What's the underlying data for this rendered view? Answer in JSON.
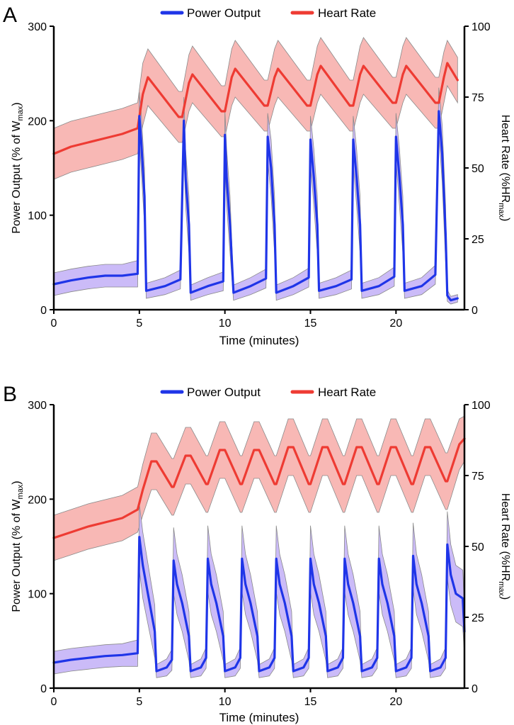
{
  "colors": {
    "power": "#1f35e8",
    "power_band": "#c5b4f7",
    "heart": "#ee3b33",
    "heart_band": "#f7b0ad",
    "band_edge": "#8a8a8a",
    "axis": "#000000"
  },
  "chart_data": [
    {
      "panel_label": "A",
      "type": "line",
      "title": "",
      "xlabel": "Time (minutes)",
      "xlim": [
        0,
        24
      ],
      "xticks": [
        0,
        5,
        10,
        15,
        20
      ],
      "ylabel_left": "Power Output  (% of W",
      "ylabel_left_sub": "max",
      "ylabel_left_end": ")",
      "ylim_left": [
        0,
        300
      ],
      "yticks_left": [
        0,
        100,
        200,
        300
      ],
      "ylabel_right": "Heart Rate (%HR",
      "ylabel_right_sub": "max",
      "ylabel_right_end": ")",
      "ylim_right": [
        0,
        100
      ],
      "yticks_right": [
        0,
        25,
        50,
        75,
        100
      ],
      "legend": "top-center",
      "series": [
        {
          "name": "Power Output",
          "axis": "left",
          "color": "#1f35e8",
          "x": [
            0,
            1,
            2,
            3,
            4,
            4.9,
            5.0,
            5.1,
            5.3,
            5.4,
            6.5,
            7.4,
            7.6,
            7.7,
            7.9,
            8.0,
            9.0,
            9.9,
            10.0,
            10.1,
            10.3,
            10.5,
            11.5,
            12.4,
            12.5,
            12.7,
            12.9,
            13.0,
            14.0,
            14.9,
            15.0,
            15.2,
            15.4,
            15.5,
            16.5,
            17.4,
            17.5,
            17.7,
            17.9,
            18.0,
            19.0,
            19.9,
            20.0,
            20.2,
            20.4,
            20.5,
            21.5,
            22.3,
            22.5,
            22.7,
            22.9,
            23.0,
            23.2,
            23.6
          ],
          "values": [
            27,
            31,
            34,
            36,
            36,
            38,
            205,
            180,
            120,
            20,
            25,
            32,
            200,
            140,
            90,
            18,
            25,
            30,
            185,
            140,
            90,
            18,
            25,
            33,
            183,
            150,
            90,
            18,
            25,
            34,
            180,
            140,
            90,
            20,
            25,
            32,
            180,
            140,
            90,
            20,
            25,
            35,
            183,
            140,
            90,
            20,
            25,
            37,
            210,
            165,
            80,
            15,
            10,
            12
          ],
          "band": [
            12,
            12,
            12,
            12,
            12,
            14,
            25,
            30,
            30,
            8,
            9,
            10,
            25,
            30,
            30,
            8,
            9,
            10,
            25,
            30,
            30,
            8,
            9,
            10,
            25,
            30,
            30,
            8,
            9,
            10,
            25,
            30,
            30,
            8,
            9,
            10,
            25,
            30,
            30,
            8,
            9,
            10,
            25,
            30,
            30,
            8,
            9,
            10,
            25,
            30,
            30,
            6,
            4,
            4
          ]
        },
        {
          "name": "Heart Rate",
          "axis": "right",
          "color": "#ee3b33",
          "x": [
            0,
            1,
            2,
            3,
            4,
            4.9,
            5.2,
            5.5,
            7.3,
            7.5,
            7.9,
            8.1,
            9.8,
            10.0,
            10.4,
            10.6,
            12.3,
            12.5,
            12.9,
            13.1,
            14.8,
            15.0,
            15.4,
            15.6,
            17.3,
            17.5,
            17.9,
            18.1,
            19.8,
            20.0,
            20.4,
            20.6,
            22.3,
            22.5,
            22.8,
            23.0,
            23.6
          ],
          "values": [
            55,
            57.5,
            59,
            60.5,
            62,
            64,
            76,
            82,
            68,
            68,
            80,
            83,
            70,
            70,
            82,
            85,
            72,
            72,
            82,
            85,
            72,
            72,
            83,
            86,
            72,
            72,
            83,
            86,
            73,
            73,
            83,
            86,
            73,
            73,
            82,
            87,
            81
          ],
          "band": [
            9,
            9,
            9,
            9,
            9,
            9,
            11,
            10,
            9,
            9,
            10,
            10,
            9,
            9,
            10,
            10,
            9,
            9,
            10,
            10,
            9,
            9,
            10,
            10,
            9,
            9,
            10,
            10,
            9,
            9,
            10,
            10,
            9,
            9,
            9,
            8,
            8
          ]
        }
      ]
    },
    {
      "panel_label": "B",
      "type": "line",
      "title": "",
      "xlabel": "Time (minutes)",
      "xlim": [
        0,
        24
      ],
      "xticks": [
        0,
        5,
        10,
        15,
        20
      ],
      "ylabel_left": "Power Output  (% of W",
      "ylabel_left_sub": "max",
      "ylabel_left_end": ")",
      "ylim_left": [
        0,
        300
      ],
      "yticks_left": [
        0,
        100,
        200,
        300
      ],
      "ylabel_right": "Heart Rate (%HR",
      "ylabel_right_sub": "max",
      "ylabel_right_end": ")",
      "ylim_right": [
        0,
        100
      ],
      "yticks_right": [
        0,
        25,
        50,
        75,
        100
      ],
      "legend": "top-center",
      "series": [
        {
          "name": "Power Output",
          "axis": "left",
          "color": "#1f35e8",
          "x": [
            0,
            1,
            2,
            3,
            4,
            4.9,
            5.0,
            5.2,
            5.5,
            5.9,
            6.0,
            6.6,
            6.9,
            7.0,
            7.2,
            7.5,
            7.9,
            8.0,
            8.6,
            8.9,
            9.0,
            9.2,
            9.5,
            9.9,
            10.0,
            10.6,
            10.9,
            11.0,
            11.2,
            11.5,
            11.9,
            12.0,
            12.6,
            12.9,
            13.0,
            13.2,
            13.5,
            13.9,
            14.0,
            14.6,
            14.9,
            15.0,
            15.2,
            15.5,
            15.9,
            16.0,
            16.6,
            16.9,
            17.0,
            17.2,
            17.5,
            17.9,
            18.0,
            18.6,
            18.9,
            19.0,
            19.2,
            19.5,
            19.9,
            20.0,
            20.6,
            20.9,
            21.0,
            21.2,
            21.5,
            21.9,
            22.0,
            22.6,
            22.9,
            23.0,
            23.2,
            23.5,
            23.9,
            24.0
          ],
          "values": [
            27,
            30,
            32,
            34,
            35,
            37,
            160,
            130,
            100,
            60,
            18,
            22,
            30,
            135,
            110,
            90,
            55,
            18,
            22,
            32,
            137,
            110,
            90,
            55,
            18,
            22,
            32,
            137,
            110,
            90,
            55,
            18,
            22,
            32,
            137,
            110,
            90,
            55,
            18,
            22,
            32,
            137,
            110,
            90,
            55,
            18,
            22,
            32,
            137,
            110,
            90,
            55,
            18,
            22,
            32,
            137,
            110,
            90,
            55,
            18,
            22,
            32,
            140,
            110,
            90,
            55,
            18,
            22,
            32,
            152,
            120,
            100,
            95,
            60
          ],
          "band": [
            12,
            12,
            12,
            12,
            12,
            14,
            35,
            35,
            32,
            28,
            7,
            9,
            11,
            35,
            32,
            30,
            26,
            7,
            9,
            11,
            35,
            32,
            30,
            26,
            7,
            9,
            11,
            35,
            32,
            30,
            26,
            7,
            9,
            11,
            35,
            32,
            30,
            26,
            7,
            9,
            11,
            35,
            32,
            30,
            26,
            7,
            9,
            11,
            35,
            32,
            30,
            26,
            7,
            9,
            11,
            35,
            32,
            30,
            26,
            7,
            9,
            11,
            35,
            32,
            30,
            26,
            7,
            9,
            11,
            35,
            32,
            30,
            30,
            25
          ]
        },
        {
          "name": "Heart Rate",
          "axis": "right",
          "color": "#ee3b33",
          "x": [
            0,
            1,
            2,
            3,
            4,
            4.9,
            5.2,
            5.7,
            6.0,
            6.9,
            7.0,
            7.7,
            8.0,
            8.9,
            9.0,
            9.7,
            10.0,
            10.9,
            11.0,
            11.7,
            12.0,
            12.9,
            13.0,
            13.7,
            14.0,
            14.9,
            15.0,
            15.7,
            16.0,
            16.9,
            17.0,
            17.7,
            18.0,
            18.9,
            19.0,
            19.7,
            20.0,
            20.9,
            21.0,
            21.7,
            22.0,
            22.9,
            23.0,
            23.7,
            24.0
          ],
          "values": [
            53,
            55,
            57,
            58.5,
            60,
            63,
            70,
            80,
            80,
            71,
            71,
            82,
            82,
            72,
            72,
            84,
            84,
            72,
            72,
            84,
            84,
            72,
            72,
            85,
            85,
            72,
            72,
            85,
            85,
            72,
            72,
            85,
            85,
            72,
            72,
            85,
            85,
            72,
            72,
            85,
            85,
            73,
            73,
            86,
            88
          ],
          "band": [
            8,
            8,
            8,
            8,
            8,
            8,
            9,
            10,
            10,
            10,
            10,
            10,
            10,
            10,
            10,
            10,
            10,
            10,
            10,
            10,
            10,
            10,
            10,
            10,
            10,
            10,
            10,
            10,
            10,
            10,
            10,
            10,
            10,
            10,
            10,
            10,
            10,
            10,
            10,
            10,
            10,
            10,
            10,
            9,
            8
          ]
        }
      ]
    }
  ]
}
